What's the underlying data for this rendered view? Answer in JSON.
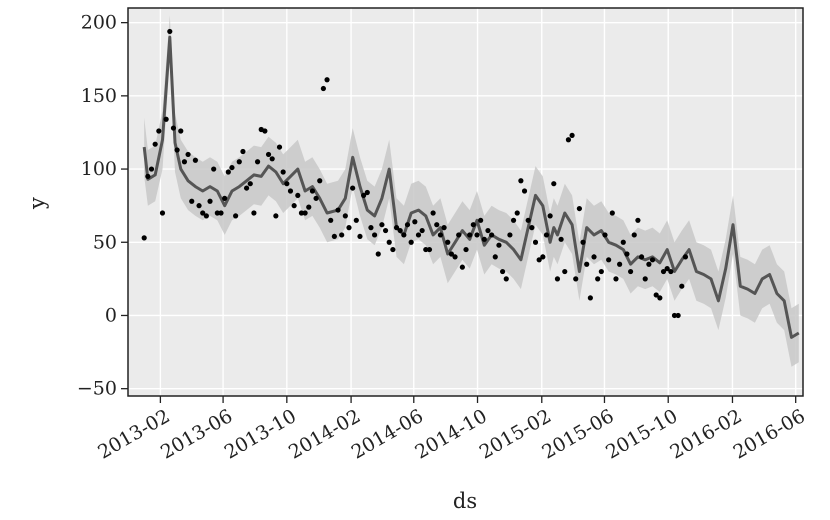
{
  "chart_data": {
    "type": "line",
    "title": "",
    "xlabel": "ds",
    "ylabel": "y",
    "ylim": [
      -55,
      210
    ],
    "xlim": [
      "2012-12-01",
      "2016-06-15"
    ],
    "yticks": [
      200,
      150,
      100,
      50,
      0,
      -50
    ],
    "ytick_labels": [
      "200",
      "150",
      "100",
      "50",
      "0",
      "−50"
    ],
    "xticks": [
      "2013-02",
      "2013-06",
      "2013-10",
      "2014-02",
      "2014-06",
      "2014-10",
      "2015-02",
      "2015-06",
      "2015-10",
      "2016-02",
      "2016-06"
    ],
    "grid": true,
    "colors": {
      "background": "#ebebeb",
      "grid": "#ffffff",
      "forecast": "#555555",
      "band": "#c8c8c8",
      "points": "#000000"
    },
    "forecast": {
      "x": [
        "2013-01-01",
        "2013-01-08",
        "2013-01-22",
        "2013-02-05",
        "2013-02-19",
        "2013-03-01",
        "2013-03-12",
        "2013-03-26",
        "2013-04-09",
        "2013-04-23",
        "2013-05-07",
        "2013-05-21",
        "2013-06-04",
        "2013-06-18",
        "2013-07-02",
        "2013-07-16",
        "2013-07-30",
        "2013-08-13",
        "2013-08-27",
        "2013-09-10",
        "2013-09-24",
        "2013-10-08",
        "2013-10-22",
        "2013-11-05",
        "2013-11-19",
        "2013-12-03",
        "2013-12-17",
        "2014-01-07",
        "2014-01-21",
        "2014-02-04",
        "2014-02-18",
        "2014-03-04",
        "2014-03-18",
        "2014-04-01",
        "2014-04-15",
        "2014-04-29",
        "2014-05-13",
        "2014-05-27",
        "2014-06-10",
        "2014-06-24",
        "2014-07-08",
        "2014-07-22",
        "2014-08-05",
        "2014-08-19",
        "2014-09-02",
        "2014-09-16",
        "2014-09-30",
        "2014-10-14",
        "2014-10-28",
        "2014-11-11",
        "2014-11-25",
        "2014-12-09",
        "2014-12-23",
        "2015-01-06",
        "2015-01-20",
        "2015-02-03",
        "2015-02-17",
        "2015-02-24",
        "2015-03-03",
        "2015-03-17",
        "2015-03-31",
        "2015-04-14",
        "2015-04-28",
        "2015-05-12",
        "2015-05-26",
        "2015-06-09",
        "2015-06-23",
        "2015-07-07",
        "2015-07-21",
        "2015-08-04",
        "2015-08-18",
        "2015-09-01",
        "2015-09-15",
        "2015-09-29",
        "2015-10-13",
        "2015-10-27",
        "2015-11-10",
        "2015-11-24",
        "2015-12-08",
        "2015-12-22",
        "2016-01-05",
        "2016-01-19",
        "2016-02-02",
        "2016-02-16",
        "2016-03-01",
        "2016-03-15",
        "2016-03-29",
        "2016-04-12",
        "2016-04-26",
        "2016-05-10",
        "2016-05-24",
        "2016-06-07"
      ],
      "yhat": [
        115,
        93,
        96,
        120,
        190,
        118,
        100,
        92,
        88,
        85,
        88,
        85,
        75,
        85,
        88,
        92,
        96,
        95,
        102,
        98,
        90,
        95,
        100,
        85,
        88,
        80,
        70,
        72,
        80,
        108,
        88,
        72,
        68,
        80,
        100,
        60,
        55,
        70,
        72,
        68,
        55,
        60,
        42,
        50,
        58,
        52,
        65,
        48,
        55,
        52,
        50,
        45,
        38,
        60,
        82,
        75,
        50,
        60,
        55,
        70,
        62,
        30,
        60,
        55,
        58,
        50,
        48,
        45,
        35,
        40,
        38,
        40,
        36,
        45,
        30,
        38,
        45,
        30,
        28,
        25,
        10,
        32,
        62,
        20,
        18,
        15,
        25,
        28,
        15,
        10,
        -15,
        -12
      ],
      "yhat_lower": [
        95,
        75,
        78,
        100,
        175,
        98,
        80,
        72,
        68,
        65,
        68,
        65,
        55,
        65,
        68,
        72,
        76,
        75,
        82,
        78,
        70,
        75,
        80,
        65,
        68,
        60,
        50,
        52,
        60,
        88,
        68,
        52,
        48,
        60,
        80,
        40,
        35,
        50,
        52,
        48,
        35,
        40,
        22,
        30,
        38,
        32,
        45,
        28,
        35,
        32,
        30,
        25,
        18,
        40,
        62,
        55,
        30,
        40,
        35,
        50,
        42,
        10,
        40,
        35,
        38,
        30,
        28,
        25,
        15,
        20,
        18,
        20,
        16,
        25,
        10,
        18,
        25,
        10,
        8,
        5,
        -10,
        12,
        42,
        0,
        -2,
        -5,
        5,
        8,
        -5,
        -10,
        -35,
        -32
      ],
      "yhat_upper": [
        135,
        113,
        116,
        140,
        205,
        138,
        120,
        112,
        108,
        105,
        108,
        105,
        95,
        105,
        108,
        112,
        116,
        115,
        122,
        118,
        110,
        115,
        120,
        105,
        108,
        100,
        90,
        92,
        100,
        128,
        108,
        92,
        88,
        100,
        120,
        80,
        75,
        90,
        92,
        88,
        75,
        80,
        62,
        70,
        78,
        72,
        85,
        68,
        75,
        72,
        70,
        65,
        58,
        80,
        102,
        95,
        70,
        80,
        75,
        90,
        82,
        50,
        80,
        75,
        78,
        70,
        68,
        65,
        55,
        60,
        58,
        60,
        56,
        65,
        50,
        58,
        65,
        50,
        48,
        45,
        30,
        52,
        82,
        40,
        38,
        35,
        45,
        48,
        35,
        30,
        5,
        8
      ]
    },
    "points": [
      [
        "2013-01-01",
        53
      ],
      [
        "2013-01-08",
        95
      ],
      [
        "2013-01-15",
        100
      ],
      [
        "2013-01-22",
        117
      ],
      [
        "2013-01-29",
        126
      ],
      [
        "2013-02-05",
        70
      ],
      [
        "2013-02-12",
        134
      ],
      [
        "2013-02-19",
        194
      ],
      [
        "2013-02-26",
        128
      ],
      [
        "2013-03-05",
        113
      ],
      [
        "2013-03-12",
        126
      ],
      [
        "2013-03-19",
        105
      ],
      [
        "2013-03-26",
        110
      ],
      [
        "2013-04-02",
        78
      ],
      [
        "2013-04-09",
        106
      ],
      [
        "2013-04-16",
        75
      ],
      [
        "2013-04-23",
        70
      ],
      [
        "2013-04-30",
        68
      ],
      [
        "2013-05-07",
        78
      ],
      [
        "2013-05-14",
        100
      ],
      [
        "2013-05-21",
        70
      ],
      [
        "2013-05-28",
        70
      ],
      [
        "2013-06-04",
        80
      ],
      [
        "2013-06-11",
        98
      ],
      [
        "2013-06-18",
        101
      ],
      [
        "2013-06-25",
        68
      ],
      [
        "2013-07-02",
        105
      ],
      [
        "2013-07-09",
        112
      ],
      [
        "2013-07-16",
        87
      ],
      [
        "2013-07-23",
        90
      ],
      [
        "2013-07-30",
        70
      ],
      [
        "2013-08-06",
        105
      ],
      [
        "2013-08-13",
        127
      ],
      [
        "2013-08-20",
        126
      ],
      [
        "2013-08-27",
        110
      ],
      [
        "2013-09-03",
        107
      ],
      [
        "2013-09-10",
        68
      ],
      [
        "2013-09-17",
        115
      ],
      [
        "2013-09-24",
        98
      ],
      [
        "2013-10-01",
        90
      ],
      [
        "2013-10-08",
        85
      ],
      [
        "2013-10-15",
        75
      ],
      [
        "2013-10-22",
        82
      ],
      [
        "2013-10-29",
        70
      ],
      [
        "2013-11-05",
        70
      ],
      [
        "2013-11-12",
        74
      ],
      [
        "2013-11-19",
        85
      ],
      [
        "2013-11-26",
        80
      ],
      [
        "2013-12-03",
        92
      ],
      [
        "2013-12-10",
        155
      ],
      [
        "2013-12-17",
        161
      ],
      [
        "2013-12-24",
        65
      ],
      [
        "2013-12-31",
        54
      ],
      [
        "2014-01-07",
        72
      ],
      [
        "2014-01-14",
        55
      ],
      [
        "2014-01-21",
        68
      ],
      [
        "2014-01-28",
        60
      ],
      [
        "2014-02-04",
        87
      ],
      [
        "2014-02-11",
        65
      ],
      [
        "2014-02-18",
        54
      ],
      [
        "2014-02-25",
        82
      ],
      [
        "2014-03-04",
        84
      ],
      [
        "2014-03-11",
        60
      ],
      [
        "2014-03-18",
        55
      ],
      [
        "2014-03-25",
        42
      ],
      [
        "2014-04-01",
        62
      ],
      [
        "2014-04-08",
        58
      ],
      [
        "2014-04-15",
        50
      ],
      [
        "2014-04-22",
        45
      ],
      [
        "2014-04-29",
        60
      ],
      [
        "2014-05-06",
        58
      ],
      [
        "2014-05-13",
        55
      ],
      [
        "2014-05-20",
        62
      ],
      [
        "2014-05-27",
        50
      ],
      [
        "2014-06-03",
        64
      ],
      [
        "2014-06-10",
        55
      ],
      [
        "2014-06-17",
        58
      ],
      [
        "2014-06-24",
        45
      ],
      [
        "2014-07-01",
        45
      ],
      [
        "2014-07-08",
        70
      ],
      [
        "2014-07-15",
        62
      ],
      [
        "2014-07-22",
        55
      ],
      [
        "2014-07-29",
        60
      ],
      [
        "2014-08-05",
        50
      ],
      [
        "2014-08-12",
        42
      ],
      [
        "2014-08-19",
        40
      ],
      [
        "2014-08-26",
        55
      ],
      [
        "2014-09-02",
        33
      ],
      [
        "2014-09-09",
        45
      ],
      [
        "2014-09-16",
        55
      ],
      [
        "2014-09-23",
        62
      ],
      [
        "2014-09-30",
        55
      ],
      [
        "2014-10-07",
        65
      ],
      [
        "2014-10-14",
        52
      ],
      [
        "2014-10-21",
        58
      ],
      [
        "2014-10-28",
        55
      ],
      [
        "2014-11-04",
        40
      ],
      [
        "2014-11-11",
        48
      ],
      [
        "2014-11-18",
        30
      ],
      [
        "2014-11-25",
        25
      ],
      [
        "2014-12-02",
        55
      ],
      [
        "2014-12-09",
        65
      ],
      [
        "2014-12-16",
        70
      ],
      [
        "2014-12-23",
        92
      ],
      [
        "2014-12-30",
        85
      ],
      [
        "2015-01-06",
        65
      ],
      [
        "2015-01-13",
        60
      ],
      [
        "2015-01-20",
        50
      ],
      [
        "2015-01-27",
        38
      ],
      [
        "2015-02-03",
        40
      ],
      [
        "2015-02-10",
        55
      ],
      [
        "2015-02-17",
        68
      ],
      [
        "2015-02-24",
        90
      ],
      [
        "2015-03-03",
        25
      ],
      [
        "2015-03-10",
        52
      ],
      [
        "2015-03-17",
        30
      ],
      [
        "2015-03-24",
        120
      ],
      [
        "2015-03-31",
        123
      ],
      [
        "2015-04-07",
        25
      ],
      [
        "2015-04-14",
        73
      ],
      [
        "2015-04-21",
        50
      ],
      [
        "2015-04-28",
        35
      ],
      [
        "2015-05-05",
        12
      ],
      [
        "2015-05-12",
        40
      ],
      [
        "2015-05-19",
        25
      ],
      [
        "2015-05-26",
        30
      ],
      [
        "2015-06-02",
        55
      ],
      [
        "2015-06-09",
        38
      ],
      [
        "2015-06-16",
        70
      ],
      [
        "2015-06-23",
        25
      ],
      [
        "2015-06-30",
        35
      ],
      [
        "2015-07-07",
        50
      ],
      [
        "2015-07-14",
        42
      ],
      [
        "2015-07-21",
        30
      ],
      [
        "2015-07-28",
        55
      ],
      [
        "2015-08-04",
        65
      ],
      [
        "2015-08-11",
        40
      ],
      [
        "2015-08-18",
        25
      ],
      [
        "2015-08-25",
        35
      ],
      [
        "2015-09-01",
        38
      ],
      [
        "2015-09-08",
        14
      ],
      [
        "2015-09-15",
        12
      ],
      [
        "2015-09-22",
        30
      ],
      [
        "2015-09-29",
        32
      ],
      [
        "2015-10-06",
        30
      ],
      [
        "2015-10-13",
        0
      ],
      [
        "2015-10-20",
        0
      ],
      [
        "2015-10-27",
        20
      ],
      [
        "2015-11-03",
        40
      ]
    ]
  }
}
